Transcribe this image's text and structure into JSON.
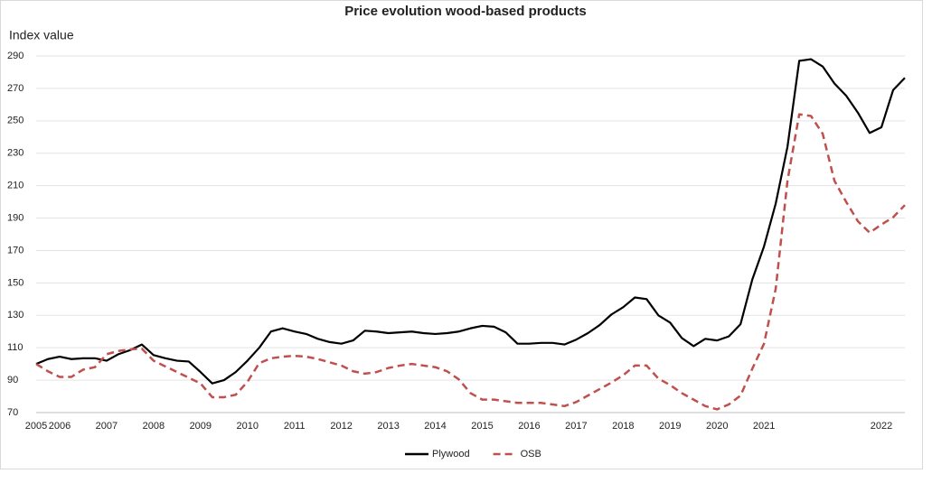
{
  "chart_data": {
    "type": "line",
    "title": "Price evolution wood-based products",
    "y_label": "Index value",
    "categories": [
      "2005",
      null,
      "2006",
      null,
      null,
      null,
      "2007",
      null,
      null,
      null,
      "2008",
      null,
      null,
      null,
      "2009",
      null,
      null,
      null,
      "2010",
      null,
      null,
      null,
      "2011",
      null,
      null,
      null,
      "2012",
      null,
      null,
      null,
      "2013",
      null,
      null,
      null,
      "2014",
      null,
      null,
      null,
      "2015",
      null,
      null,
      null,
      "2016",
      null,
      null,
      null,
      "2017",
      null,
      null,
      null,
      "2018",
      null,
      null,
      null,
      "2019",
      null,
      null,
      null,
      "2020",
      null,
      null,
      null,
      "2021",
      null,
      null,
      null,
      null,
      null,
      null,
      null,
      null,
      null,
      "2022",
      null,
      null
    ],
    "series": [
      {
        "name": "Plywood",
        "color": "#000000",
        "dashed": false,
        "values": [
          100,
          103,
          104.5,
          103,
          103.5,
          103.5,
          102,
          106,
          108.5,
          112,
          105.5,
          103.5,
          102,
          101.5,
          95,
          88,
          90,
          95,
          102,
          110,
          120,
          122,
          120,
          118.5,
          115.5,
          113.5,
          112.5,
          114.5,
          120.5,
          120,
          119,
          119.5,
          120,
          119,
          118.5,
          119,
          120,
          122,
          123.5,
          123,
          119.5,
          112.5,
          112.5,
          113,
          113,
          112,
          115,
          119,
          124,
          130.5,
          135,
          141,
          140,
          130,
          125.5,
          116,
          111,
          115.5,
          114.5,
          117,
          124.5,
          152,
          172.5,
          199,
          234,
          287,
          288,
          283.5,
          273,
          265.5,
          255,
          242.5,
          246,
          269,
          276.5
        ]
      },
      {
        "name": "OSB",
        "color": "#c0504d",
        "dashed": true,
        "values": [
          100,
          95.5,
          92,
          92,
          96.5,
          98,
          106,
          108,
          109,
          109.5,
          102,
          98.5,
          95,
          91.5,
          88,
          79.5,
          79.5,
          81,
          89,
          100.5,
          103.5,
          104.5,
          105,
          104.5,
          103,
          101,
          99,
          95.5,
          94,
          95,
          97.5,
          99,
          100,
          99,
          98,
          95.5,
          90.5,
          82,
          78,
          78,
          77,
          76,
          76,
          76,
          75,
          74,
          76.5,
          80.5,
          84.5,
          88.5,
          93,
          99,
          99,
          91,
          87,
          82,
          78,
          74,
          72,
          75,
          80.5,
          97,
          112.5,
          146.5,
          213,
          254,
          253,
          242,
          213,
          200,
          188,
          181,
          186,
          190.5,
          198
        ]
      }
    ],
    "ylim": [
      70,
      290
    ],
    "yticks": [
      70,
      90,
      110,
      130,
      150,
      170,
      190,
      210,
      230,
      250,
      270,
      290
    ],
    "grid": true,
    "legend": "bottom"
  }
}
